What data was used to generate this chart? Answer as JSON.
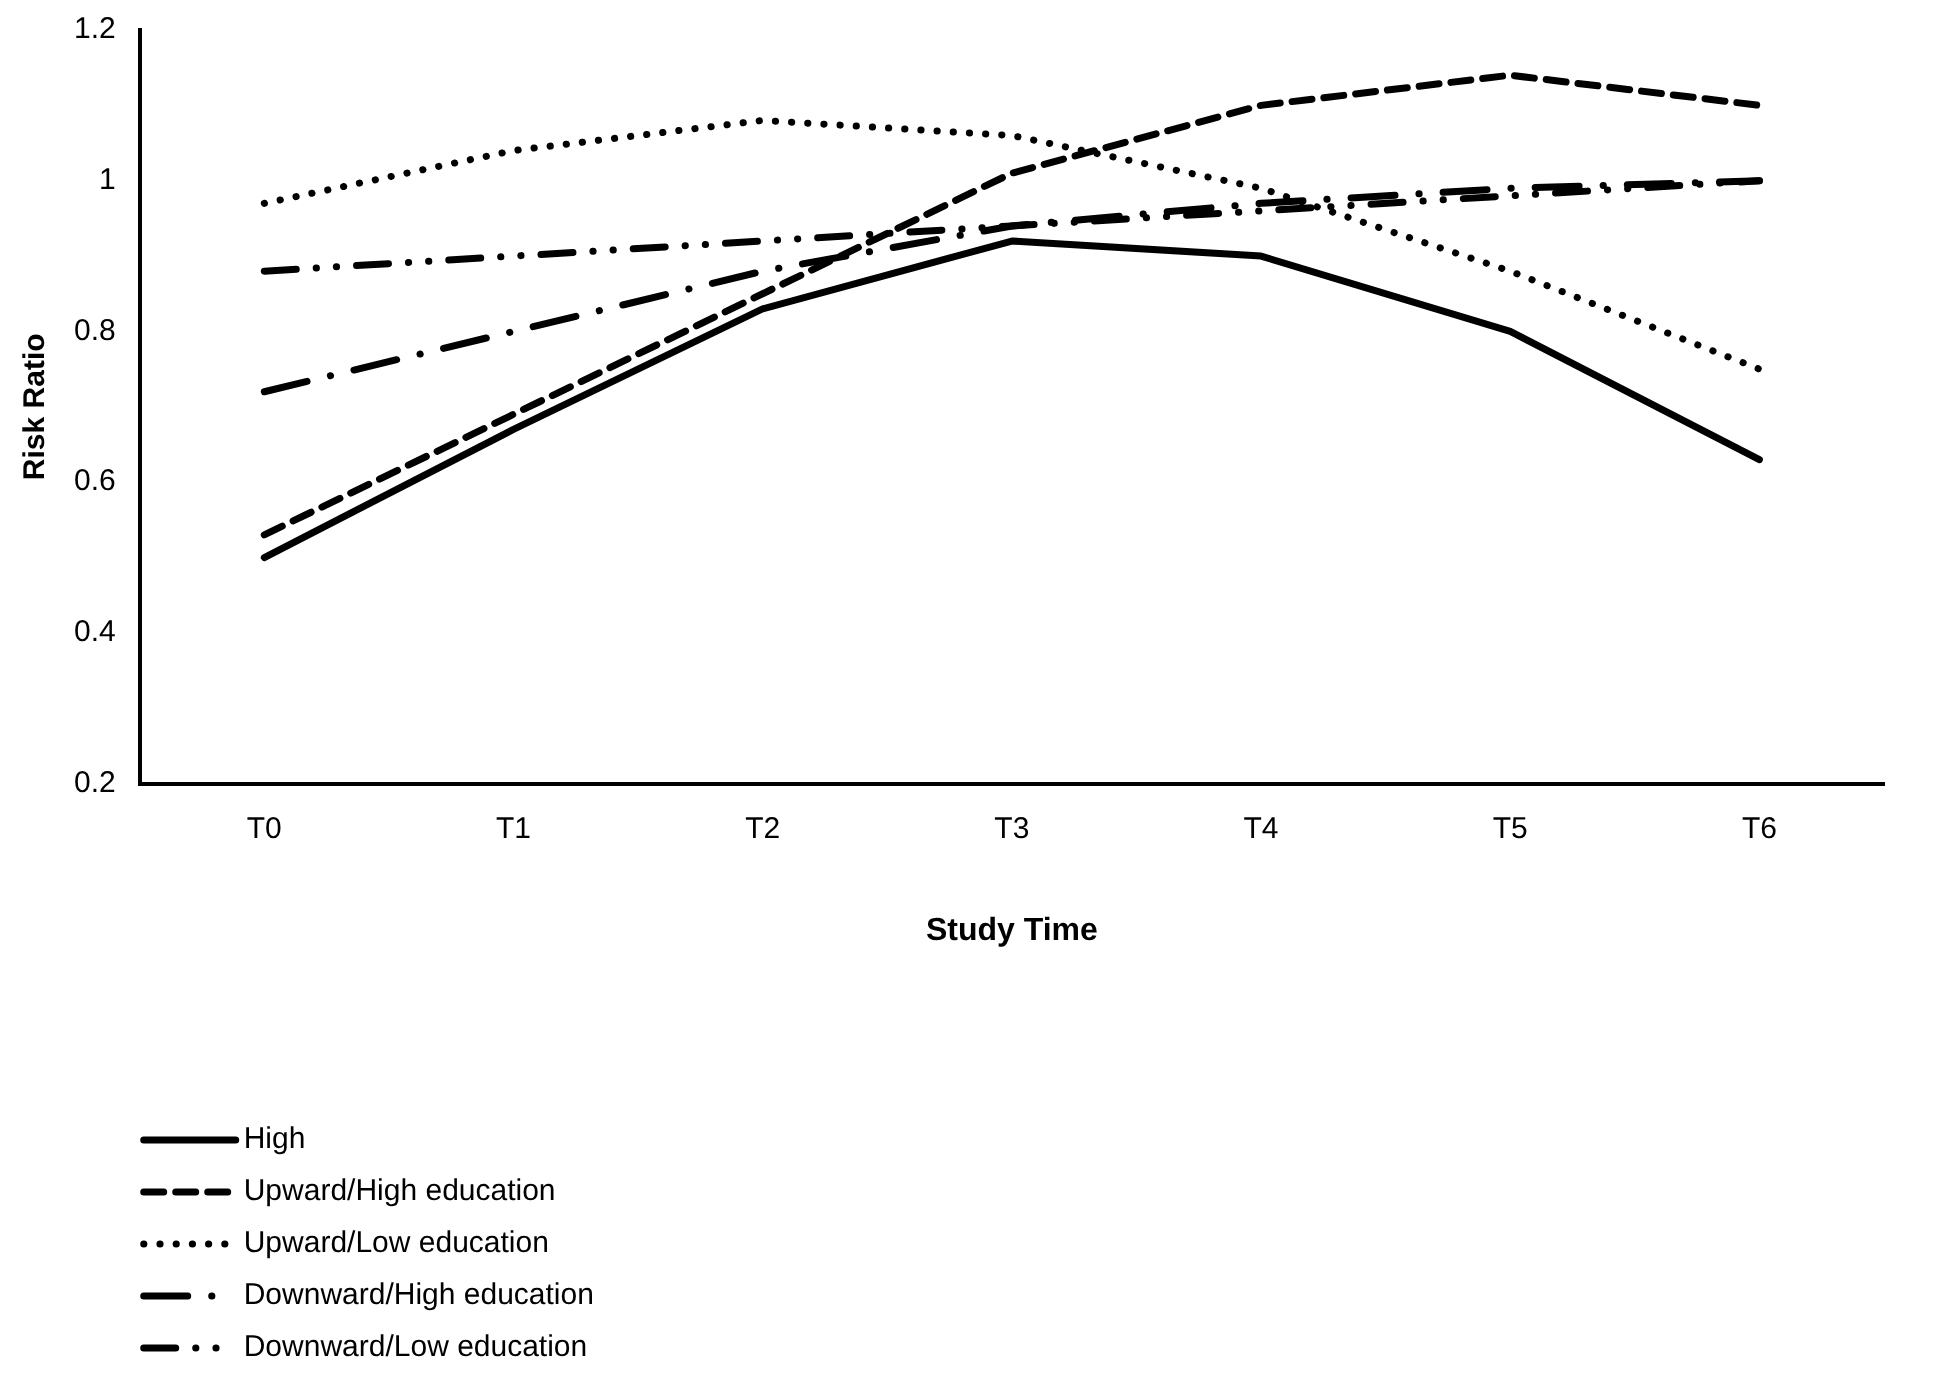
{
  "chart_data": {
    "type": "line",
    "xlabel": "Study Time",
    "ylabel": "Risk Ratio",
    "categories": [
      "T0",
      "T1",
      "T2",
      "T3",
      "T4",
      "T5",
      "T6"
    ],
    "ylim": [
      0.2,
      1.2
    ],
    "yticks": [
      0.2,
      0.4,
      0.6,
      0.8,
      1,
      1.2
    ],
    "grid": false,
    "legend": "bottom",
    "marker": "none",
    "series": [
      {
        "name": "High",
        "color": "#000000",
        "line_style": "solid",
        "values": [
          0.5,
          0.67,
          0.83,
          0.92,
          0.9,
          0.8,
          0.63
        ]
      },
      {
        "name": "Upward/High education",
        "color": "#000000",
        "line_style": "dashed",
        "values": [
          0.53,
          0.69,
          0.85,
          1.01,
          1.1,
          1.14,
          1.1
        ]
      },
      {
        "name": "Upward/Low education",
        "color": "#000000",
        "line_style": "dotted",
        "values": [
          0.97,
          1.04,
          1.08,
          1.06,
          0.99,
          0.88,
          0.75
        ]
      },
      {
        "name": "Downward/High education",
        "color": "#000000",
        "line_style": "dashdot",
        "values": [
          0.72,
          0.8,
          0.88,
          0.94,
          0.97,
          0.99,
          1
        ]
      },
      {
        "name": "Downward/Low education",
        "color": "#000000",
        "line_style": "dashdotdot",
        "values": [
          0.88,
          0.9,
          0.92,
          0.94,
          0.96,
          0.98,
          1
        ]
      }
    ]
  }
}
